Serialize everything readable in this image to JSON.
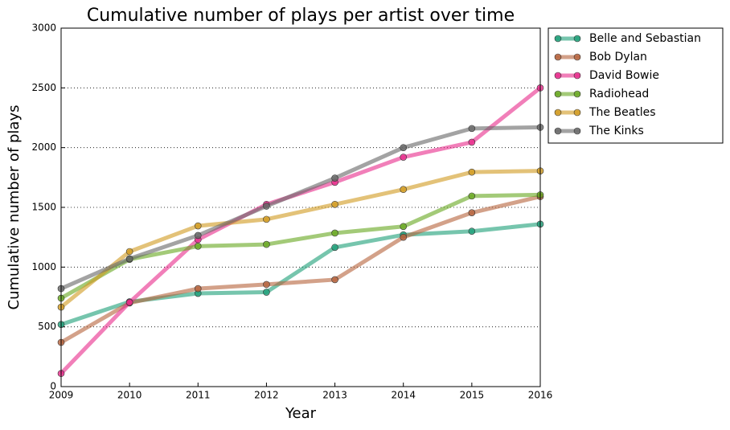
{
  "chart_data": {
    "type": "line",
    "title": "Cumulative number of plays per artist over time",
    "x_label": "Year",
    "y_label": "Cumulative number of plays",
    "x": [
      2009,
      2010,
      2011,
      2012,
      2013,
      2014,
      2015,
      2016
    ],
    "xlim": [
      2009,
      2016
    ],
    "xticks": [
      2009,
      2010,
      2011,
      2012,
      2013,
      2014,
      2015,
      2016
    ],
    "ylim": [
      0,
      3000
    ],
    "yticks": [
      0,
      500,
      1000,
      1500,
      2000,
      2500,
      3000
    ],
    "grid": true,
    "legend": "outside-upper-right",
    "series": [
      {
        "name": "Belle and Sebastian",
        "color": "#1b9e77",
        "values": [
          520,
          710,
          780,
          790,
          1165,
          1270,
          1300,
          1360
        ]
      },
      {
        "name": "Bob Dylan",
        "color": "#b5623b",
        "values": [
          370,
          700,
          820,
          855,
          895,
          1250,
          1455,
          1590
        ]
      },
      {
        "name": "David Bowie",
        "color": "#e7298a",
        "values": [
          110,
          705,
          1230,
          1525,
          1710,
          1920,
          2045,
          2500
        ]
      },
      {
        "name": "Radiohead",
        "color": "#66a61e",
        "values": [
          740,
          1065,
          1175,
          1190,
          1285,
          1340,
          1595,
          1605
        ]
      },
      {
        "name": "The Beatles",
        "color": "#d19a1e",
        "values": [
          665,
          1130,
          1345,
          1400,
          1525,
          1650,
          1795,
          1805
        ]
      },
      {
        "name": "The Kinks",
        "color": "#666666",
        "values": [
          820,
          1070,
          1265,
          1510,
          1745,
          2000,
          2160,
          2170
        ]
      }
    ]
  }
}
